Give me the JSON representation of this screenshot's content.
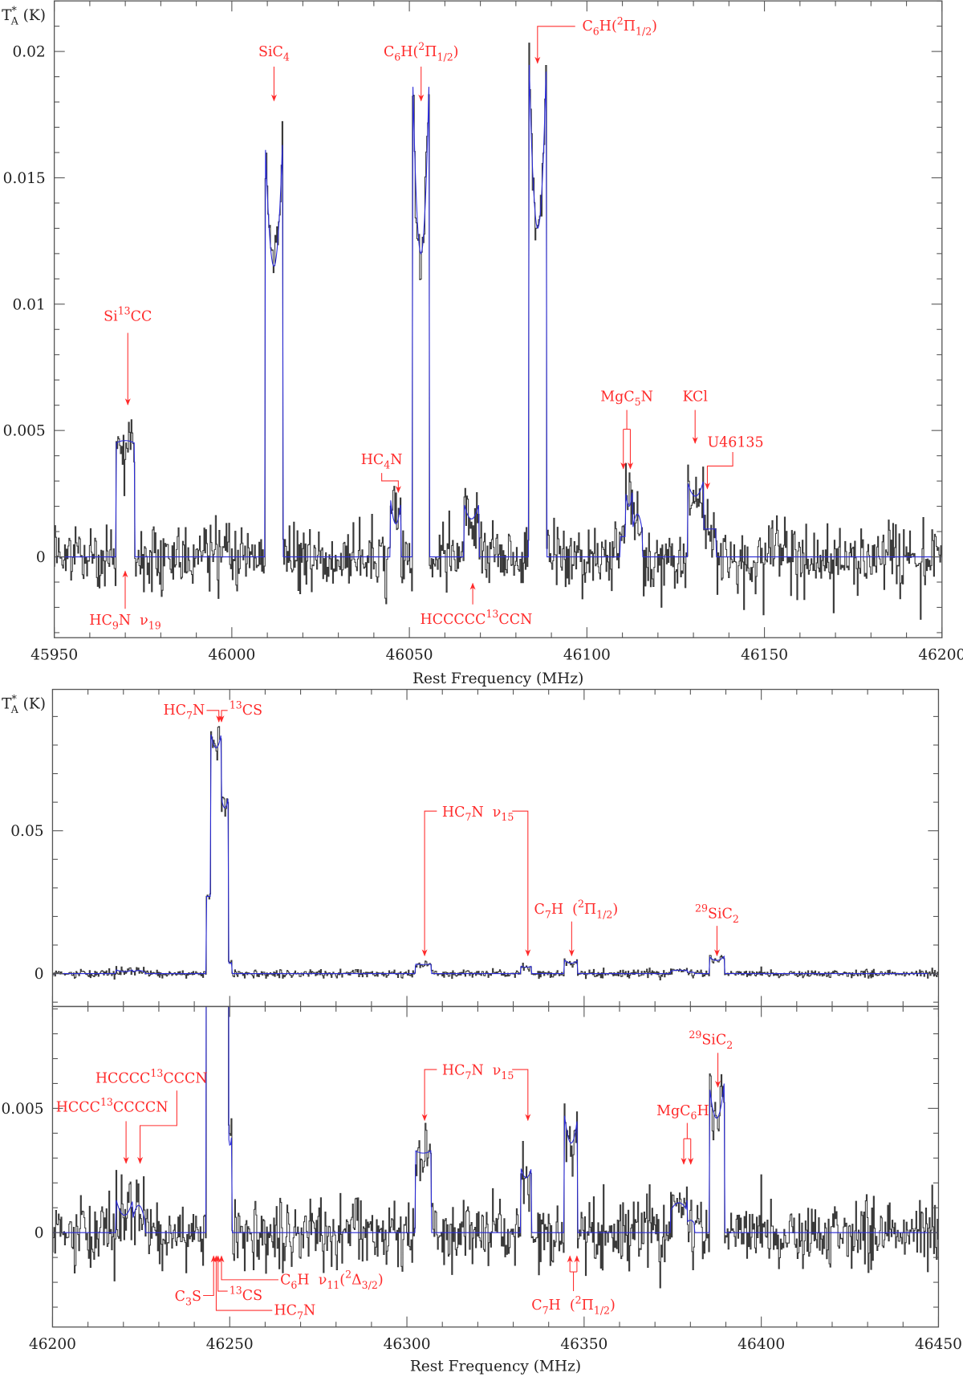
{
  "chart_data": {
    "type": "line",
    "xlabel": "Rest Frequency (MHz)",
    "ylabel": "T^*_A (K)",
    "grid": false,
    "legend": "none",
    "colors": {
      "observed": "#3a3a3a",
      "model": "#2a2ad8",
      "annotation": "#ff2a2a"
    },
    "spectra": [
      {
        "freq_range": [
          45950,
          46200
        ],
        "model_lines": [
          {
            "range": [
              45967.3,
              45972.6
            ],
            "edge": 0.0045,
            "center": 0.0046
          },
          {
            "range": [
              46009.4,
              46014.3
            ],
            "edge": 0.0165,
            "center": 0.0115
          },
          {
            "range": [
              46044.7,
              46047.7
            ],
            "edge": 0.0023,
            "center": 0.0013
          },
          {
            "range": [
              46051.0,
              46055.5
            ],
            "edge": 0.0186,
            "center": 0.012
          },
          {
            "range": [
              46065.4,
              46069.6
            ],
            "edge": 0.0021,
            "center": 0.0015
          },
          {
            "range": [
              46083.6,
              46088.7
            ],
            "edge": 0.0203,
            "center": 0.013
          },
          {
            "range": [
              46109.3,
              46110.9
            ],
            "edge": 0.0008,
            "center": 0.0008
          },
          {
            "range": [
              46110.9,
              46112.8
            ],
            "edge": 0.0026,
            "center": 0.002
          },
          {
            "range": [
              46112.8,
              46115.6
            ],
            "edge": 0.001,
            "center": 0.0017
          },
          {
            "range": [
              46128.3,
              46132.8
            ],
            "edge": 0.003,
            "center": 0.0024
          },
          {
            "range": [
              46132.8,
              46136.3
            ],
            "edge": 0.0011,
            "center": 0.0011
          }
        ]
      },
      {
        "freq_range": [
          46200,
          46450
        ],
        "model_lines": [
          {
            "range": [
              46218.0,
              46222.6
            ],
            "edge": 0.0013,
            "center": 0.0007
          },
          {
            "range": [
              46222.6,
              46226.0
            ],
            "edge": 0.0005,
            "center": 0.0011
          },
          {
            "range": [
              46243.5,
              46244.7
            ],
            "edge": 0.027,
            "center": 0.027
          },
          {
            "range": [
              46244.7,
              46247.6
            ],
            "edge": 0.084,
            "center": 0.079
          },
          {
            "range": [
              46247.6,
              46249.6
            ],
            "edge": 0.062,
            "center": 0.058
          },
          {
            "range": [
              46249.6,
              46250.6
            ],
            "edge": 0.004,
            "center": 0.0035
          },
          {
            "range": [
              46302.3,
              46306.9
            ],
            "edge": 0.0033,
            "center": 0.0032
          },
          {
            "range": [
              46332.2,
              46335.1
            ],
            "edge": 0.0026,
            "center": 0.0022
          },
          {
            "range": [
              46344.5,
              46348.2
            ],
            "edge": 0.0047,
            "center": 0.0036
          },
          {
            "range": [
              46374.5,
              46379.0
            ],
            "edge": 0.0009,
            "center": 0.0012
          },
          {
            "range": [
              46379.0,
              46381.0
            ],
            "edge": 0.0004,
            "center": 0.0005
          },
          {
            "range": [
              46385.3,
              46389.5
            ],
            "edge": 0.006,
            "center": 0.0046
          }
        ]
      }
    ],
    "panels": [
      {
        "spectrum": 0,
        "xlim": [
          45950,
          46200
        ],
        "ylim": [
          -0.0032,
          0.022
        ],
        "x_major_step": 50,
        "x_minor_step": 10,
        "y_major_step": 0.005,
        "y_minor_step": 0.001,
        "xticks": [
          "45950",
          "46000",
          "46050",
          "46100",
          "46150",
          "46200"
        ],
        "yticks": [
          "0",
          "0.005",
          "0.01",
          "0.015",
          "0.02"
        ],
        "show_ylabel": true,
        "show_xlabel": true,
        "annotations": [
          {
            "label": "Si^{13}CC",
            "freq": [
              45971
            ]
          },
          {
            "label": "HC_9N  ν_{19}",
            "freq": [
              45970.5
            ]
          },
          {
            "label": "SiC_4",
            "freq": [
              46012
            ]
          },
          {
            "label": "HC_4N",
            "freq": [
              46047
            ]
          },
          {
            "label": "C_6H(^2Π_{1/2})",
            "freq": [
              46053.5
            ]
          },
          {
            "label": "HCCCCC^{13}CCN",
            "freq": [
              46068
            ]
          },
          {
            "label": "C_6H(^2Π_{1/2})",
            "freq": [
              46087
            ]
          },
          {
            "label": "MgC_5N",
            "freq": [
              46111.7,
              46113.7
            ]
          },
          {
            "label": "KCl",
            "freq": [
              46131
            ]
          },
          {
            "label": "U46135",
            "freq": [
              46135
            ]
          }
        ]
      },
      {
        "spectrum": 1,
        "xlim": [
          46200,
          46450
        ],
        "ylim": [
          -0.0115,
          0.0995
        ],
        "x_major_step": 50,
        "x_minor_step": 10,
        "y_major_step": 0.05,
        "y_minor_step": 0.01,
        "xticks": [],
        "yticks": [
          "0",
          "0.05"
        ],
        "show_ylabel": true,
        "show_xlabel": false,
        "annotations": [
          {
            "label": "HC_7N",
            "freq": [
              46246.5
            ]
          },
          {
            "label": "^{13}CS",
            "freq": [
              46247.3
            ]
          },
          {
            "label": "HC_7N  ν_{15}",
            "freq": [
              46305,
              46334
            ]
          },
          {
            "label": "C_7H  (^2Π_{1/2})",
            "freq": [
              46346.5
            ]
          },
          {
            "label": "^{29}SiC_2",
            "freq": [
              46387.5
            ]
          }
        ]
      },
      {
        "spectrum": 1,
        "xlim": [
          46200,
          46450
        ],
        "ylim": [
          -0.0038,
          0.0091
        ],
        "x_major_step": 50,
        "x_minor_step": 10,
        "y_major_step": 0.005,
        "y_minor_step": 0.001,
        "xticks": [
          "46200",
          "46250",
          "46300",
          "46350",
          "46400",
          "46450"
        ],
        "yticks": [
          "0",
          "0.005"
        ],
        "show_ylabel": false,
        "show_xlabel": true,
        "annotations": [
          {
            "label": "HCCC^{13}CCCCN",
            "freq": [
              46221
            ]
          },
          {
            "label": "HCCCC^{13}CCCN",
            "freq": [
              46224.5
            ]
          },
          {
            "label": "HC_7N  ν_{15}",
            "freq": [
              46305,
              46334
            ]
          },
          {
            "label": "MgC_6H",
            "freq": [
              46378,
              46380
            ]
          },
          {
            "label": "^{29}SiC_2",
            "freq": [
              46387.5
            ]
          },
          {
            "label": "C_7H  (^2Π_{1/2})",
            "freq": [
              46346.5,
              46348.5
            ]
          },
          {
            "label": "C_3S",
            "freq": [
              46245.5
            ]
          },
          {
            "label": "^{13}CS",
            "freq": [
              46247.3
            ]
          },
          {
            "label": "HC_7N",
            "freq": [
              46246.5
            ]
          },
          {
            "label": "C_6H  ν_{11}(^2Δ_{3/2})",
            "freq": [
              46248.5
            ]
          }
        ]
      }
    ]
  }
}
